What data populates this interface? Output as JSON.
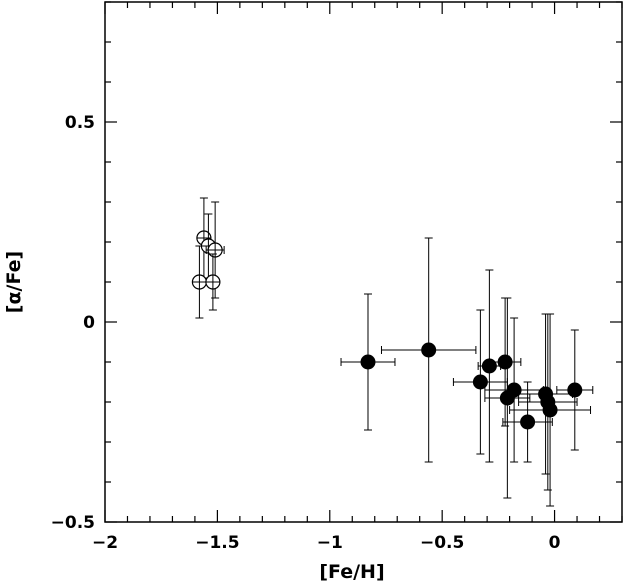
{
  "chart_data": {
    "type": "scatter",
    "xlabel": "[Fe/H]",
    "ylabel": "[α/Fe]",
    "xlim": [
      -2.0,
      0.3
    ],
    "ylim": [
      -0.5,
      0.8
    ],
    "xticks": [
      {
        "value": -2.0,
        "label": "−2"
      },
      {
        "value": -1.5,
        "label": "−1.5"
      },
      {
        "value": -1.0,
        "label": "−1"
      },
      {
        "value": -0.5,
        "label": "−0.5"
      },
      {
        "value": 0.0,
        "label": "0"
      }
    ],
    "yticks": [
      {
        "value": 0.5,
        "label": "0.5"
      },
      {
        "value": 0.0,
        "label": "0"
      },
      {
        "value": -0.5,
        "label": "−0.5"
      }
    ],
    "series": [
      {
        "marker": "open-circle-cross",
        "points": [
          {
            "x": -1.56,
            "y": 0.21,
            "xerr": 0.02,
            "yerr": 0.1
          },
          {
            "x": -1.54,
            "y": 0.19,
            "xerr": 0.02,
            "yerr": 0.08
          },
          {
            "x": -1.51,
            "y": 0.18,
            "xerr": 0.04,
            "yerr": 0.12
          },
          {
            "x": -1.58,
            "y": 0.1,
            "xerr": 0.01,
            "yerr": 0.09
          },
          {
            "x": -1.52,
            "y": 0.1,
            "xerr": 0.01,
            "yerr": 0.07
          }
        ]
      },
      {
        "marker": "filled-circle",
        "points": [
          {
            "x": -0.83,
            "y": -0.1,
            "xerr": 0.12,
            "yerr": 0.17
          },
          {
            "x": -0.56,
            "y": -0.07,
            "xerr": 0.21,
            "yerr": 0.28
          },
          {
            "x": -0.33,
            "y": -0.15,
            "xerr": 0.12,
            "yerr": 0.18
          },
          {
            "x": -0.29,
            "y": -0.11,
            "xerr": 0.05,
            "yerr": 0.24
          },
          {
            "x": -0.22,
            "y": -0.1,
            "xerr": 0.07,
            "yerr": 0.16
          },
          {
            "x": -0.21,
            "y": -0.19,
            "xerr": 0.1,
            "yerr": 0.25
          },
          {
            "x": -0.18,
            "y": -0.17,
            "xerr": 0.13,
            "yerr": 0.18
          },
          {
            "x": -0.12,
            "y": -0.25,
            "xerr": 0.11,
            "yerr": 0.1
          },
          {
            "x": -0.04,
            "y": -0.18,
            "xerr": 0.12,
            "yerr": 0.2
          },
          {
            "x": -0.03,
            "y": -0.2,
            "xerr": 0.13,
            "yerr": 0.22
          },
          {
            "x": -0.02,
            "y": -0.22,
            "xerr": 0.18,
            "yerr": 0.24
          },
          {
            "x": 0.09,
            "y": -0.17,
            "xerr": 0.08,
            "yerr": 0.15
          }
        ]
      }
    ]
  }
}
